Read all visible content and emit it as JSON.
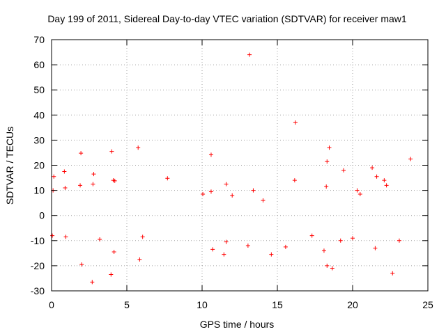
{
  "chart_data": {
    "type": "scatter",
    "title": "Day 199 of 2011, Sidereal Day-to-day VTEC variation (SDTVAR) for receiver maw1",
    "xlabel": "GPS time / hours",
    "ylabel": "SDTVAR / TECUs",
    "xlim": [
      0,
      25
    ],
    "ylim": [
      -30,
      70
    ],
    "xticks": [
      0,
      5,
      10,
      15,
      20,
      25
    ],
    "yticks": [
      -30,
      -20,
      -10,
      0,
      10,
      20,
      30,
      40,
      50,
      60,
      70
    ],
    "grid": true,
    "marker": "+",
    "color": "#ff0000",
    "series": [
      {
        "name": "SDTVAR",
        "points": [
          [
            13.15,
            64.0
          ],
          [
            16.2,
            37.0
          ],
          [
            18.45,
            27.0
          ],
          [
            5.75,
            27.0
          ],
          [
            4.0,
            25.5
          ],
          [
            1.95,
            24.8
          ],
          [
            10.6,
            24.2
          ],
          [
            23.85,
            22.5
          ],
          [
            18.3,
            21.5
          ],
          [
            19.4,
            18.0
          ],
          [
            2.8,
            16.5
          ],
          [
            0.15,
            15.5
          ],
          [
            0.85,
            17.5
          ],
          [
            7.7,
            14.8
          ],
          [
            22.1,
            14.0
          ],
          [
            0.1,
            10.0
          ],
          [
            0.9,
            11.0
          ],
          [
            1.9,
            12.0
          ],
          [
            2.75,
            12.5
          ],
          [
            4.1,
            14.0
          ],
          [
            4.2,
            13.8
          ],
          [
            11.6,
            12.5
          ],
          [
            16.15,
            14.0
          ],
          [
            18.25,
            11.5
          ],
          [
            20.5,
            8.5
          ],
          [
            21.3,
            19.0
          ],
          [
            21.6,
            15.5
          ],
          [
            22.25,
            12.0
          ],
          [
            10.05,
            8.5
          ],
          [
            10.6,
            9.5
          ],
          [
            13.4,
            10.0
          ],
          [
            14.05,
            6.0
          ],
          [
            12.0,
            8.0
          ],
          [
            20.3,
            10.0
          ],
          [
            0.05,
            -8.0
          ],
          [
            0.95,
            -8.5
          ],
          [
            2.0,
            -19.5
          ],
          [
            2.7,
            -26.5
          ],
          [
            3.95,
            -23.5
          ],
          [
            4.15,
            -14.5
          ],
          [
            5.85,
            -17.5
          ],
          [
            10.7,
            -13.5
          ],
          [
            11.45,
            -15.5
          ],
          [
            11.6,
            -10.5
          ],
          [
            13.05,
            -12.0
          ],
          [
            14.6,
            -15.5
          ],
          [
            15.55,
            -12.5
          ],
          [
            17.3,
            -8.0
          ],
          [
            18.3,
            -20.0
          ],
          [
            18.65,
            -21.0
          ],
          [
            18.1,
            -14.0
          ],
          [
            21.5,
            -13.0
          ],
          [
            22.65,
            -23.0
          ],
          [
            23.1,
            -10.0
          ],
          [
            20.0,
            -9.0
          ],
          [
            19.2,
            -10.0
          ],
          [
            3.2,
            -9.5
          ],
          [
            6.05,
            -8.5
          ]
        ]
      }
    ]
  }
}
